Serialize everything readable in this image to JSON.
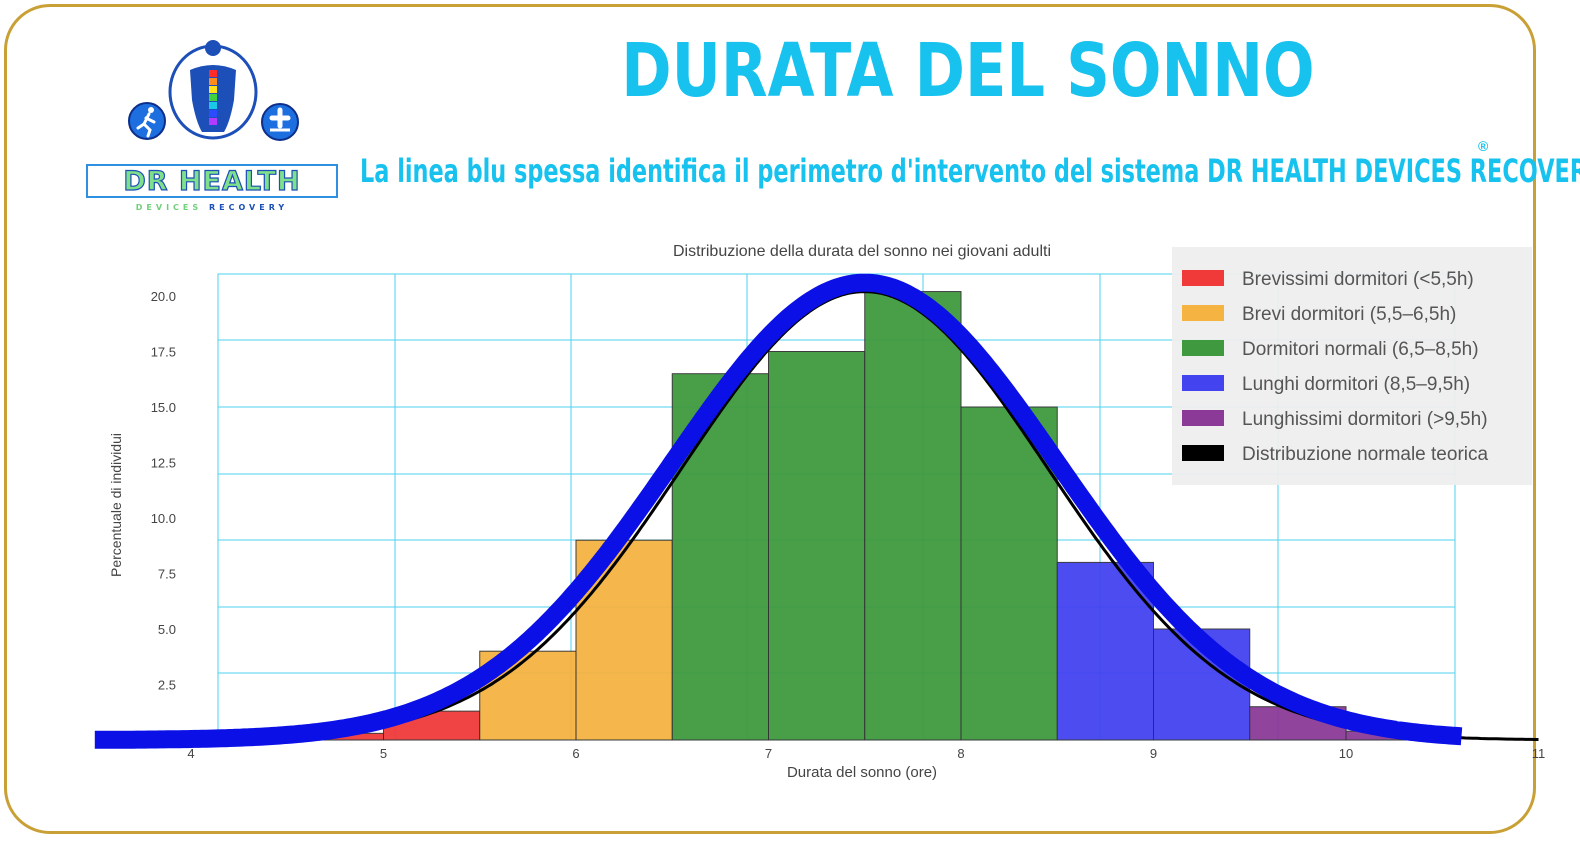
{
  "header": {
    "title": "DURATA DEL SONNO",
    "subtitle": "La linea blu spessa identifica il perimetro d'intervento del sistema DR HEALTH DEVICES RECOVERY",
    "registered_mark": "®"
  },
  "brand": {
    "name": "DR HEALTH",
    "tagline_part1": "DEVICES",
    "tagline_part2": "RECOVERY"
  },
  "colors": {
    "title": "#18c2ee",
    "frame": "#c9a035",
    "grid": "#4fd0ee",
    "overlay_line": "#0a10e6"
  },
  "icons": {
    "logo": "human-back-spine-icon",
    "left_badge": "running-person-icon",
    "right_badge": "medical-cross-icon"
  },
  "chart_data": {
    "type": "bar",
    "title": "Distribuzione della durata del sonno nei giovani adulti",
    "xlabel": "Durata del sonno (ore)",
    "ylabel": "Percentuale di individui",
    "xlim": [
      4,
      11
    ],
    "ylim": [
      0,
      21
    ],
    "grid": true,
    "x_ticks": [
      4,
      5,
      6,
      7,
      8,
      9,
      10,
      11
    ],
    "x_tick_labels": [
      "4",
      "5",
      "6",
      "7",
      "8",
      "9",
      "10",
      "11"
    ],
    "y_ticks": [
      2.5,
      5.0,
      7.5,
      10.0,
      12.5,
      15.0,
      17.5,
      20.0
    ],
    "y_tick_labels": [
      "2.5",
      "5.0",
      "7.5",
      "10.0",
      "12.5",
      "15.0",
      "17.5",
      "20.0"
    ],
    "legend_position": "top-right",
    "bins": [
      {
        "x0": 4.5,
        "x1": 5.0,
        "value": 0.3,
        "group": 0
      },
      {
        "x0": 5.0,
        "x1": 5.5,
        "value": 1.3,
        "group": 0
      },
      {
        "x0": 5.5,
        "x1": 6.0,
        "value": 4.0,
        "group": 1
      },
      {
        "x0": 6.0,
        "x1": 6.5,
        "value": 9.0,
        "group": 1
      },
      {
        "x0": 6.5,
        "x1": 7.0,
        "value": 16.5,
        "group": 2
      },
      {
        "x0": 7.0,
        "x1": 7.5,
        "value": 17.5,
        "group": 2
      },
      {
        "x0": 7.5,
        "x1": 8.0,
        "value": 20.2,
        "group": 2
      },
      {
        "x0": 8.0,
        "x1": 8.5,
        "value": 15.0,
        "group": 2
      },
      {
        "x0": 8.5,
        "x1": 9.0,
        "value": 8.0,
        "group": 3
      },
      {
        "x0": 9.0,
        "x1": 9.5,
        "value": 5.0,
        "group": 3
      },
      {
        "x0": 9.5,
        "x1": 10.0,
        "value": 1.5,
        "group": 4
      },
      {
        "x0": 10.0,
        "x1": 10.5,
        "value": 0.4,
        "group": 4
      }
    ],
    "series": [
      {
        "name": "Brevissimi dormitori (<5,5h)",
        "color": "#f03a3a"
      },
      {
        "name": "Brevi dormitori (5,5–6,5h)",
        "color": "#f5b342"
      },
      {
        "name": "Dormitori normali (6,5–8,5h)",
        "color": "#3f9a3f"
      },
      {
        "name": "Lunghi dormitori (8,5–9,5h)",
        "color": "#4343f0"
      },
      {
        "name": "Lunghissimi dormitori (>9,5h)",
        "color": "#8b3a97"
      },
      {
        "name": "Distribuzione normale teorica",
        "color": "#000000"
      }
    ],
    "normal_curve": {
      "mean": 7.5,
      "std": 0.95,
      "peak": 20.2
    }
  }
}
